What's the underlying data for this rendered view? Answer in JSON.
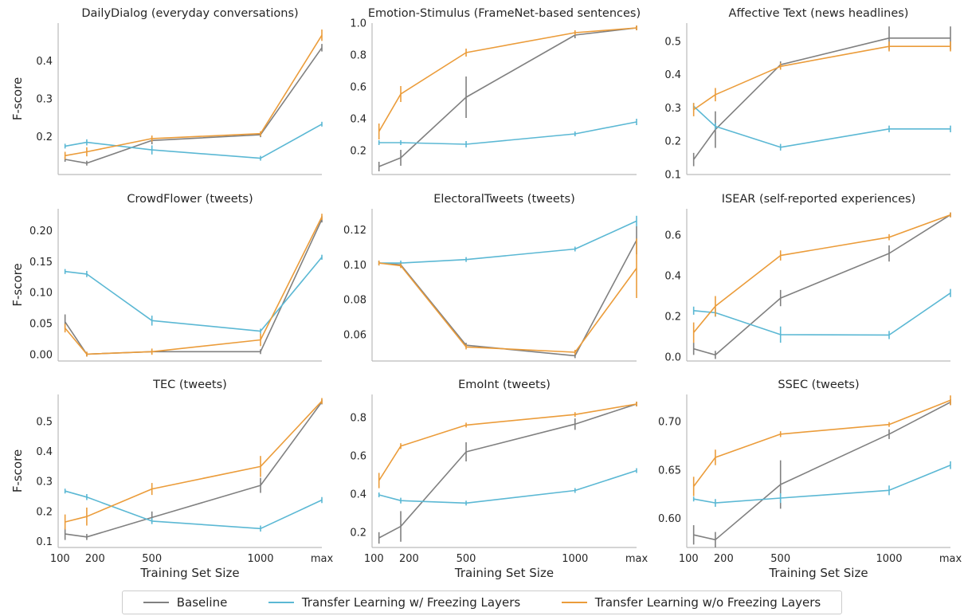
{
  "chart_data": {
    "type": "line",
    "x": [
      "100",
      "200",
      "500",
      "1000",
      "max"
    ],
    "xlabel": "Training Set Size",
    "ylabel": "F-score",
    "legend_position": "bottom-center",
    "series_names": [
      "Baseline",
      "Transfer Learning w/ Freezing Layers",
      "Transfer Learning w/o Freezing Layers"
    ],
    "colors": {
      "baseline": "#808080",
      "frozen": "#5bb8d4",
      "unfrozen": "#eb9c3a",
      "axis": "#bbbbbb"
    },
    "panels": [
      {
        "title": "DailyDialog (everyday conversations)",
        "ylim": [
          0.1,
          0.5
        ],
        "yticks": [
          "0.2",
          "0.3",
          "0.4"
        ],
        "ytick_values": [
          0.2,
          0.3,
          0.4
        ],
        "series": [
          {
            "name": "Baseline",
            "values": [
              0.14,
              0.13,
              0.19,
              0.205,
              0.435
            ],
            "errors": [
              0.005,
              0.003,
              0.01,
              0.004,
              0.01
            ]
          },
          {
            "name": "Transfer Learning w/ Freezing Layers",
            "values": [
              0.175,
              0.185,
              0.165,
              0.143,
              0.233
            ],
            "errors": [
              0.005,
              0.008,
              0.012,
              0.005,
              0.003
            ]
          },
          {
            "name": "Transfer Learning w/o Freezing Layers",
            "values": [
              0.15,
              0.16,
              0.195,
              0.208,
              0.468
            ],
            "errors": [
              0.01,
              0.012,
              0.008,
              0.006,
              0.015
            ]
          }
        ]
      },
      {
        "title": "Emotion-Stimulus (FrameNet-based sentences)",
        "ylim": [
          0.05,
          1.0
        ],
        "yticks": [
          "0.2",
          "0.4",
          "0.6",
          "0.8",
          "1.0"
        ],
        "ytick_values": [
          0.2,
          0.4,
          0.6,
          0.8,
          1.0
        ],
        "series": [
          {
            "name": "Baseline",
            "values": [
              0.1,
              0.155,
              0.535,
              0.925,
              0.97
            ],
            "errors": [
              0.03,
              0.05,
              0.13,
              0.02,
              0.01
            ]
          },
          {
            "name": "Transfer Learning w/ Freezing Layers",
            "values": [
              0.25,
              0.25,
              0.24,
              0.305,
              0.38
            ],
            "errors": [
              0.01,
              0.01,
              0.02,
              0.015,
              0.02
            ]
          },
          {
            "name": "Transfer Learning w/o Freezing Layers",
            "values": [
              0.32,
              0.555,
              0.815,
              0.94,
              0.97
            ],
            "errors": [
              0.05,
              0.05,
              0.025,
              0.01,
              0.01
            ]
          }
        ]
      },
      {
        "title": "Affective Text (news headlines)",
        "ylim": [
          0.1,
          0.555
        ],
        "yticks": [
          "0.1",
          "0.2",
          "0.3",
          "0.4",
          "0.5"
        ],
        "ytick_values": [
          0.1,
          0.2,
          0.3,
          0.4,
          0.5
        ],
        "series": [
          {
            "name": "Baseline",
            "values": [
              0.145,
              0.235,
              0.43,
              0.51,
              0.51
            ],
            "errors": [
              0.02,
              0.055,
              0.01,
              0.035,
              0.035
            ]
          },
          {
            "name": "Transfer Learning w/ Freezing Layers",
            "values": [
              0.305,
              0.245,
              0.182,
              0.237,
              0.237
            ],
            "errors": [
              0.01,
              0.01,
              0.01,
              0.01,
              0.01
            ]
          },
          {
            "name": "Transfer Learning w/o Freezing Layers",
            "values": [
              0.295,
              0.34,
              0.425,
              0.485,
              0.485
            ],
            "errors": [
              0.02,
              0.02,
              0.01,
              0.015,
              0.015
            ]
          }
        ]
      },
      {
        "title": "CrowdFlower (tweets)",
        "ylim": [
          -0.01,
          0.235
        ],
        "yticks": [
          "0.00",
          "0.05",
          "0.10",
          "0.15",
          "0.20"
        ],
        "ytick_values": [
          0.0,
          0.05,
          0.1,
          0.15,
          0.2
        ],
        "series": [
          {
            "name": "Baseline",
            "values": [
              0.053,
              0.001,
              0.005,
              0.005,
              0.218
            ],
            "errors": [
              0.012,
              0.001,
              0.002,
              0.002,
              0.005
            ]
          },
          {
            "name": "Transfer Learning w/ Freezing Layers",
            "values": [
              0.134,
              0.13,
              0.055,
              0.038,
              0.157
            ],
            "errors": [
              0.004,
              0.005,
              0.008,
              0.004,
              0.004
            ]
          },
          {
            "name": "Transfer Learning w/o Freezing Layers",
            "values": [
              0.043,
              0.001,
              0.005,
              0.024,
              0.222
            ],
            "errors": [
              0.007,
              0.001,
              0.005,
              0.01,
              0.005
            ]
          }
        ]
      },
      {
        "title": "ElectoralTweets (tweets)",
        "ylim": [
          0.045,
          0.132
        ],
        "yticks": [
          "0.06",
          "0.08",
          "0.10",
          "0.12"
        ],
        "ytick_values": [
          0.06,
          0.08,
          0.1,
          0.12
        ],
        "series": [
          {
            "name": "Baseline",
            "values": [
              0.101,
              0.1,
              0.054,
              0.048,
              0.114
            ],
            "errors": [
              0.0005,
              0.0005,
              0.001,
              0.001,
              0.008
            ]
          },
          {
            "name": "Transfer Learning w/ Freezing Layers",
            "values": [
              0.101,
              0.101,
              0.103,
              0.109,
              0.125
            ],
            "errors": [
              0.0005,
              0.0005,
              0.0005,
              0.001,
              0.003
            ]
          },
          {
            "name": "Transfer Learning w/o Freezing Layers",
            "values": [
              0.101,
              0.0995,
              0.053,
              0.05,
              0.098
            ],
            "errors": [
              0.0005,
              0.0005,
              0.001,
              0.001,
              0.017
            ]
          }
        ]
      },
      {
        "title": "ISEAR (self-reported experiences)",
        "ylim": [
          -0.02,
          0.73
        ],
        "yticks": [
          "0.0",
          "0.2",
          "0.4",
          "0.6"
        ],
        "ytick_values": [
          0.0,
          0.2,
          0.4,
          0.6
        ],
        "series": [
          {
            "name": "Baseline",
            "values": [
              0.04,
              0.01,
              0.29,
              0.51,
              0.7
            ],
            "errors": [
              0.03,
              0.02,
              0.04,
              0.04,
              0.01
            ]
          },
          {
            "name": "Transfer Learning w/ Freezing Layers",
            "values": [
              0.228,
              0.218,
              0.11,
              0.108,
              0.315
            ],
            "errors": [
              0.02,
              0.02,
              0.04,
              0.02,
              0.02
            ]
          },
          {
            "name": "Transfer Learning w/o Freezing Layers",
            "values": [
              0.12,
              0.25,
              0.5,
              0.59,
              0.7
            ],
            "errors": [
              0.05,
              0.05,
              0.025,
              0.015,
              0.01
            ]
          }
        ]
      },
      {
        "title": "TEC (tweets)",
        "ylim": [
          0.08,
          0.59
        ],
        "yticks": [
          "0.1",
          "0.2",
          "0.3",
          "0.4",
          "0.5"
        ],
        "ytick_values": [
          0.1,
          0.2,
          0.3,
          0.4,
          0.5
        ],
        "series": [
          {
            "name": "Baseline",
            "values": [
              0.125,
              0.115,
              0.18,
              0.287,
              0.565
            ],
            "errors": [
              0.02,
              0.01,
              0.02,
              0.025,
              0.008
            ]
          },
          {
            "name": "Transfer Learning w/ Freezing Layers",
            "values": [
              0.268,
              0.248,
              0.168,
              0.143,
              0.238
            ],
            "errors": [
              0.005,
              0.01,
              0.01,
              0.01,
              0.01
            ]
          },
          {
            "name": "Transfer Learning w/o Freezing Layers",
            "values": [
              0.165,
              0.183,
              0.275,
              0.35,
              0.568
            ],
            "errors": [
              0.025,
              0.03,
              0.02,
              0.035,
              0.01
            ]
          }
        ]
      },
      {
        "title": "EmoInt (tweets)",
        "ylim": [
          0.12,
          0.92
        ],
        "yticks": [
          "0.2",
          "0.4",
          "0.6",
          "0.8"
        ],
        "ytick_values": [
          0.2,
          0.4,
          0.6,
          0.8
        ],
        "series": [
          {
            "name": "Baseline",
            "values": [
              0.17,
              0.23,
              0.62,
              0.765,
              0.87
            ],
            "errors": [
              0.03,
              0.08,
              0.05,
              0.03,
              0.01
            ]
          },
          {
            "name": "Transfer Learning w/ Freezing Layers",
            "values": [
              0.395,
              0.365,
              0.352,
              0.418,
              0.522
            ],
            "errors": [
              0.01,
              0.015,
              0.01,
              0.01,
              0.005
            ]
          },
          {
            "name": "Transfer Learning w/o Freezing Layers",
            "values": [
              0.47,
              0.65,
              0.76,
              0.815,
              0.87
            ],
            "errors": [
              0.04,
              0.015,
              0.01,
              0.01,
              0.01
            ]
          }
        ]
      },
      {
        "title": "SSEC (tweets)",
        "ylim": [
          0.57,
          0.728
        ],
        "yticks": [
          "0.60",
          "0.65",
          "0.70"
        ],
        "ytick_values": [
          0.6,
          0.65,
          0.7
        ],
        "series": [
          {
            "name": "Baseline",
            "values": [
              0.583,
              0.578,
              0.635,
              0.687,
              0.72
            ],
            "errors": [
              0.01,
              0.008,
              0.025,
              0.005,
              0.003
            ]
          },
          {
            "name": "Transfer Learning w/ Freezing Layers",
            "values": [
              0.62,
              0.616,
              0.621,
              0.629,
              0.655
            ],
            "errors": [
              0.002,
              0.004,
              0.005,
              0.005,
              0.004
            ]
          },
          {
            "name": "Transfer Learning w/o Freezing Layers",
            "values": [
              0.633,
              0.663,
              0.687,
              0.697,
              0.722
            ],
            "errors": [
              0.01,
              0.008,
              0.003,
              0.002,
              0.005
            ]
          }
        ]
      }
    ]
  }
}
